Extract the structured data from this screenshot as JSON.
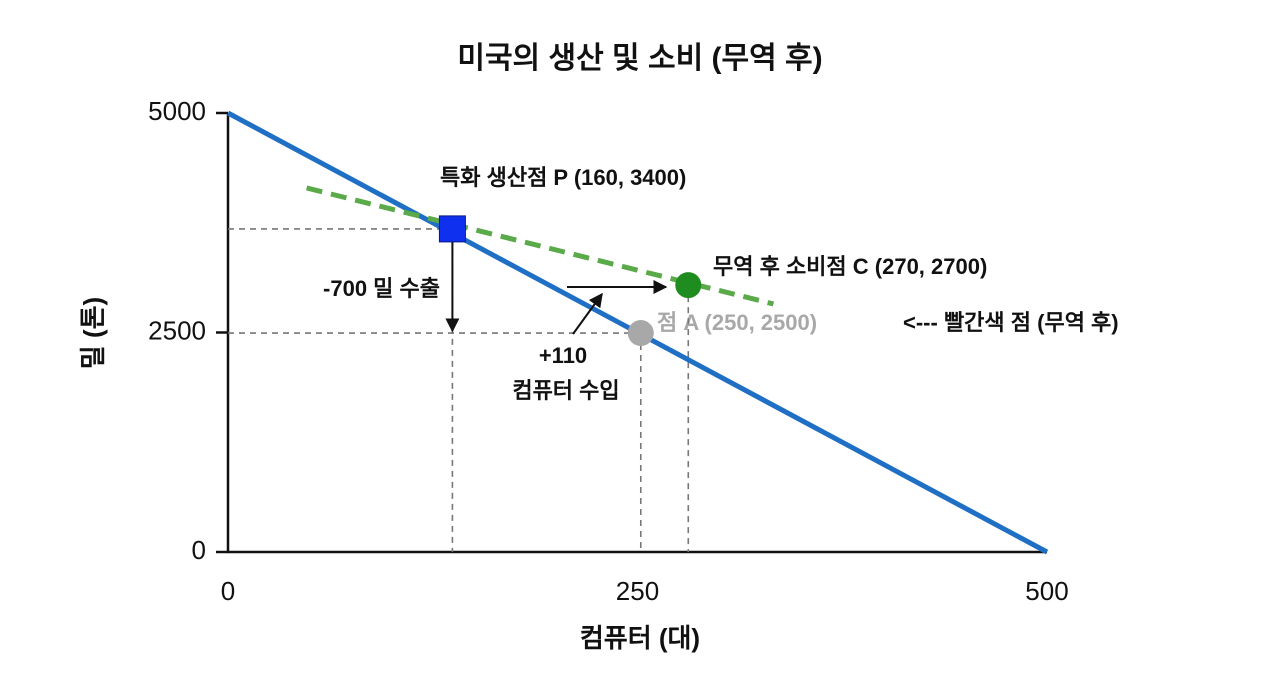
{
  "chart_data": {
    "type": "line",
    "title": "미국의 생산 및 소비 (무역 후)",
    "x_label": "컴퓨터 (대)",
    "y_label": "밀 (톤)",
    "xlim": [
      0,
      500
    ],
    "ylim": [
      0,
      5000
    ],
    "xticks": [
      0,
      250,
      500
    ],
    "yticks": [
      0,
      2500,
      5000
    ],
    "series": [
      {
        "color": "#1f6fc4",
        "style": "solid",
        "x": [
          0,
          500
        ],
        "values": [
          5000,
          0
        ]
      },
      {
        "color": "#5aaa4a",
        "style": "dashed",
        "x": [
          48,
          333
        ],
        "values": [
          4146,
          2825
        ]
      }
    ],
    "points": [
      {
        "marker": "square",
        "color": "#1030f0",
        "x": 137,
        "y": 3680
      },
      {
        "marker": "circle",
        "color": "#1e8c1e",
        "x": 281,
        "y": 3040
      },
      {
        "marker": "circle",
        "color": "#a8a8a8",
        "x": 252,
        "y": 2494
      }
    ],
    "annotations": [
      "특화 생산점 P (160, 3400)",
      "무역 후 소비점 C (270, 2700)",
      "-700 밀 수출",
      "점 A (250, 2500)",
      "<--- 빨간색 점 (무역 후)",
      "+110",
      "컴퓨터 수입"
    ]
  }
}
